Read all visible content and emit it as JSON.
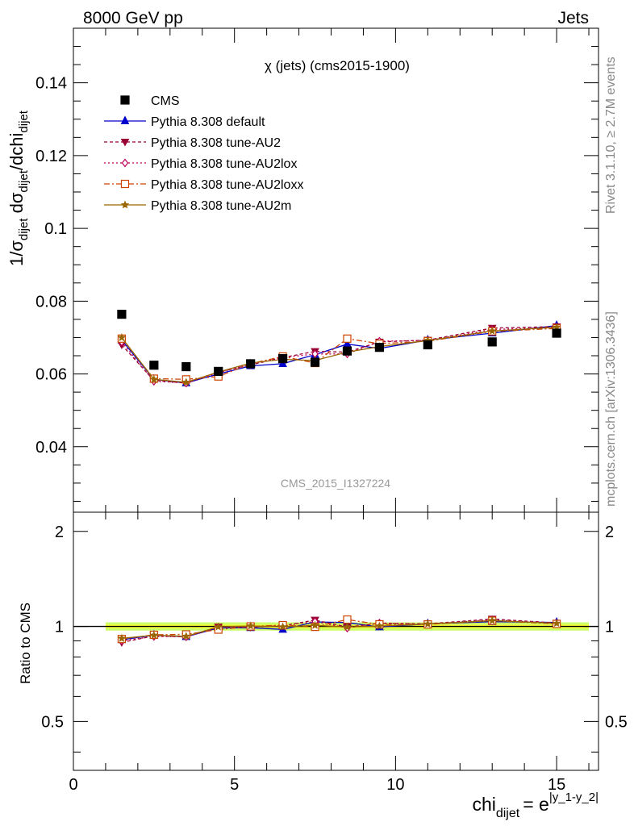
{
  "header": {
    "left": "8000 GeV pp",
    "right": "Jets"
  },
  "side": {
    "rivet": "Rivet 3.1.10, ≥ 2.7M events",
    "mcplots": "mcplots.cern.ch [arXiv:1306.3436]"
  },
  "chart_data": {
    "type": "scatter",
    "title": "χ (jets) (cms2015-1900)",
    "watermark": "CMS_2015_I1327224",
    "xlabel": "chi",
    "xlabel_sub": "dijet",
    "xlabel_rhs": "= e",
    "xlabel_sup": "|y_1-y_2|",
    "ylabel_main": "1/σ",
    "ylabel_sub1": "dijet",
    "ylabel_mid": " dσ",
    "ylabel_sub2": "dijet",
    "ylabel_tail": "/dchi",
    "ylabel_sub3": "dijet",
    "ratio_ylabel": "Ratio to CMS",
    "xlim": [
      0,
      16.3
    ],
    "ylim": [
      0.022,
      0.155
    ],
    "ratio_ylim": [
      0.35,
      2.3
    ],
    "x_ticks": [
      0,
      5,
      10,
      15
    ],
    "x_tick_labels": [
      "0",
      "5",
      "10",
      "15"
    ],
    "y_ticks": [
      0.04,
      0.06,
      0.08,
      0.1,
      0.12,
      0.14
    ],
    "y_tick_labels": [
      "0.04",
      "0.06",
      "0.08",
      "0.1",
      "0.12",
      "0.14"
    ],
    "ratio_ticks": [
      0.5,
      1,
      2
    ],
    "ratio_tick_labels": [
      "0.5",
      "1",
      "2"
    ],
    "x": [
      1.5,
      2.5,
      3.5,
      4.5,
      5.5,
      6.5,
      7.5,
      8.5,
      9.5,
      11,
      13,
      15
    ],
    "x_edges": [
      1,
      2,
      3,
      4,
      5,
      6,
      7,
      8,
      9,
      10,
      12,
      14,
      16
    ],
    "data": {
      "name": "CMS",
      "color": "#000000",
      "values": [
        0.0764,
        0.0624,
        0.062,
        0.0607,
        0.0628,
        0.0642,
        0.0632,
        0.0663,
        0.0673,
        0.068,
        0.0688,
        0.0712
      ]
    },
    "series": [
      {
        "name": "Pythia 8.308 default",
        "color": "#0000cc",
        "marker": "triangle-up",
        "dash": "",
        "fill": true,
        "values": [
          0.0693,
          0.0585,
          0.0575,
          0.06,
          0.0622,
          0.0628,
          0.0653,
          0.0682,
          0.067,
          0.0693,
          0.0712,
          0.0733
        ]
      },
      {
        "name": "Pythia 8.308 tune-AU2",
        "color": "#990033",
        "marker": "triangle-down",
        "dash": "4,3",
        "fill": true,
        "values": [
          0.068,
          0.0582,
          0.0575,
          0.0605,
          0.0625,
          0.0645,
          0.0662,
          0.066,
          0.0688,
          0.0693,
          0.0726,
          0.073
        ]
      },
      {
        "name": "Pythia 8.308 tune-AU2lox",
        "color": "#bb0055",
        "marker": "diamond",
        "dash": "2,3",
        "fill": false,
        "values": [
          0.0688,
          0.058,
          0.0575,
          0.0603,
          0.0627,
          0.0645,
          0.0655,
          0.0655,
          0.069,
          0.0692,
          0.0722,
          0.0728
        ]
      },
      {
        "name": "Pythia 8.308 tune-AU2loxx",
        "color": "#cc4400",
        "marker": "square",
        "dash": "7,3,2,3",
        "fill": false,
        "values": [
          0.0697,
          0.0587,
          0.0585,
          0.0593,
          0.0628,
          0.0648,
          0.063,
          0.0697,
          0.0683,
          0.069,
          0.0717,
          0.0725
        ]
      },
      {
        "name": "Pythia 8.308 tune-AU2m",
        "color": "#996600",
        "marker": "star",
        "dash": "",
        "fill": true,
        "values": [
          0.07,
          0.0585,
          0.0577,
          0.0605,
          0.063,
          0.064,
          0.0637,
          0.066,
          0.0675,
          0.0692,
          0.0718,
          0.0728
        ]
      }
    ],
    "legend_position": "top-left",
    "grid": false,
    "band_colors": {
      "outer": "#ccff66",
      "inner": "#ffff33"
    }
  }
}
